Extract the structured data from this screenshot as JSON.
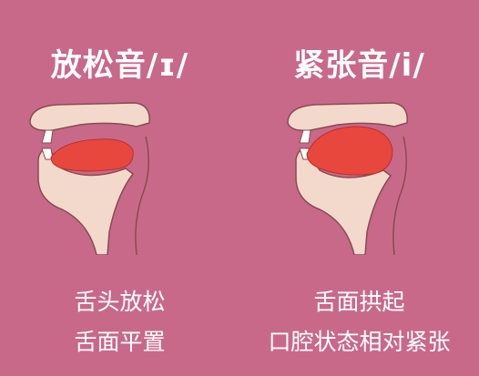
{
  "left": {
    "title": "放松音/ɪ/",
    "captions": [
      "舌头放松",
      "舌面平置"
    ],
    "tongue_shape": "flat"
  },
  "right": {
    "title": "紧张音/i/",
    "captions": [
      "舌面拱起",
      "口腔状态相对紧张"
    ],
    "tongue_shape": "arched"
  },
  "colors": {
    "background": "#c8698a",
    "tissue": "#f2d9cc",
    "outline": "#8a4a52",
    "tongue": "#e8473e",
    "text": "#ffffff"
  }
}
